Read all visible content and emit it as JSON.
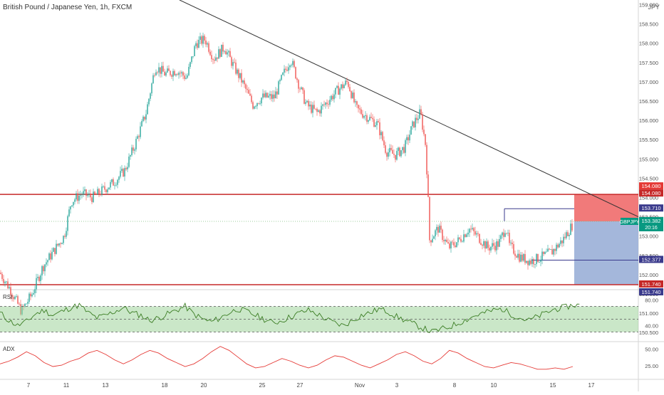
{
  "header": {
    "title": "British Pound / Japanese Yen, 1h, FXCM",
    "corner": "JPY"
  },
  "colors": {
    "up": "#26a69a",
    "down": "#ef5350",
    "level_line": "#c62828",
    "trend_line": "#333333",
    "stop_zone": "#ef6b6b",
    "target_zone": "#9fb3d9",
    "rsi_line": "#3b7d23",
    "rsi_band": "#9fd39a",
    "adx_line": "#e53935",
    "current_price": "#089981"
  },
  "chart_data": [
    {
      "type": "candlestick",
      "pane": "price",
      "y_ticks": [
        "159.000",
        "158.500",
        "158.000",
        "157.500",
        "157.000",
        "156.500",
        "156.000",
        "155.500",
        "155.000",
        "154.500",
        "154.000",
        "153.500",
        "153.000",
        "152.500",
        "152.000",
        "151.500",
        "151.000",
        "150.500"
      ],
      "ylim": [
        150.3,
        159.0
      ],
      "x_ticks": [
        "7",
        "11",
        "13",
        "18",
        "20",
        "25",
        "27",
        "Nov",
        "3",
        "8",
        "10",
        "15",
        "17"
      ],
      "close_path": [
        [
          0,
          152.05
        ],
        [
          15,
          151.6
        ],
        [
          30,
          151.05
        ],
        [
          45,
          151.5
        ],
        [
          60,
          152.2
        ],
        [
          75,
          152.6
        ],
        [
          90,
          153.0
        ],
        [
          100,
          153.9
        ],
        [
          115,
          154.1
        ],
        [
          130,
          154.0
        ],
        [
          145,
          154.2
        ],
        [
          160,
          154.4
        ],
        [
          175,
          154.7
        ],
        [
          190,
          155.4
        ],
        [
          205,
          156.2
        ],
        [
          218,
          157.4
        ],
        [
          232,
          157.2
        ],
        [
          248,
          157.3
        ],
        [
          262,
          157.1
        ],
        [
          275,
          158.0
        ],
        [
          288,
          158.1
        ],
        [
          300,
          157.6
        ],
        [
          315,
          157.9
        ],
        [
          328,
          157.4
        ],
        [
          340,
          157.0
        ],
        [
          355,
          156.4
        ],
        [
          368,
          156.6
        ],
        [
          385,
          156.6
        ],
        [
          398,
          157.2
        ],
        [
          408,
          157.6
        ],
        [
          420,
          156.9
        ],
        [
          430,
          156.4
        ],
        [
          445,
          156.2
        ],
        [
          460,
          156.5
        ],
        [
          475,
          156.8
        ],
        [
          488,
          157.0
        ],
        [
          500,
          156.3
        ],
        [
          515,
          156.1
        ],
        [
          530,
          155.9
        ],
        [
          542,
          155.2
        ],
        [
          555,
          155.1
        ],
        [
          568,
          155.3
        ],
        [
          580,
          155.9
        ],
        [
          590,
          156.2
        ],
        [
          597,
          155.4
        ],
        [
          600,
          154.4
        ],
        [
          603,
          152.9
        ],
        [
          615,
          153.2
        ],
        [
          630,
          152.7
        ],
        [
          645,
          152.9
        ],
        [
          658,
          153.2
        ],
        [
          670,
          153.0
        ],
        [
          685,
          152.7
        ],
        [
          700,
          152.8
        ],
        [
          710,
          153.25
        ],
        [
          715,
          152.75
        ],
        [
          730,
          152.45
        ],
        [
          745,
          152.35
        ],
        [
          760,
          152.45
        ],
        [
          775,
          152.6
        ],
        [
          790,
          152.9
        ],
        [
          803,
          153.28
        ]
      ]
    },
    {
      "type": "line",
      "pane": "rsi",
      "title": "RSI",
      "y_ticks": [
        "80.00",
        "40.00"
      ],
      "ylim": [
        20,
        100
      ],
      "levels": [
        70,
        50,
        30
      ],
      "values": [
        60,
        48,
        40,
        46,
        58,
        64,
        56,
        62,
        68,
        72,
        60,
        52,
        56,
        62,
        68,
        60,
        56,
        48,
        52,
        58,
        64,
        70,
        58,
        50,
        46,
        52,
        60,
        66,
        62,
        56,
        50,
        44,
        48,
        54,
        60,
        64,
        58,
        50,
        44,
        40,
        48,
        56,
        60,
        66,
        62,
        54,
        48,
        42,
        36,
        30,
        34,
        38,
        44,
        50,
        56,
        60,
        64,
        66,
        58,
        52,
        48,
        54,
        60,
        66,
        68,
        72
      ]
    },
    {
      "type": "line",
      "pane": "adx",
      "title": "ADX",
      "y_ticks": [
        "50.00",
        "25.00"
      ],
      "ylim": [
        5,
        60
      ],
      "values": [
        28,
        32,
        38,
        46,
        40,
        30,
        24,
        26,
        32,
        36,
        44,
        48,
        42,
        34,
        28,
        34,
        42,
        48,
        44,
        36,
        30,
        24,
        28,
        36,
        46,
        54,
        48,
        38,
        28,
        22,
        24,
        30,
        36,
        32,
        26,
        22,
        26,
        34,
        40,
        38,
        32,
        26,
        22,
        28,
        34,
        42,
        46,
        40,
        32,
        28,
        36,
        48,
        44,
        36,
        30,
        24,
        22,
        26,
        30,
        28,
        24,
        20,
        20,
        22,
        20,
        24
      ]
    }
  ],
  "annotations": {
    "upper_level": "154.080",
    "lower_level": "151.740",
    "stop_level": "153.710",
    "prev_high": "153.386",
    "target_level": "152.377",
    "entry": "153.382"
  },
  "price_labels": [
    {
      "text": "154.080",
      "bg": "#e53935"
    },
    {
      "text": "154.080",
      "bg": "#c62828"
    },
    {
      "text": "153.710",
      "bg": "#3a3a8c"
    },
    {
      "text": "153.386",
      "bg": "#555555"
    },
    {
      "text": "153.382",
      "bg": "#089981"
    },
    {
      "text": "20:16",
      "bg": "#089981"
    },
    {
      "text": "152.377",
      "bg": "#3a3a8c"
    },
    {
      "text": "151.740",
      "bg": "#c62828"
    },
    {
      "text": "151.740",
      "bg": "#3a3a8c"
    }
  ],
  "symbol_tag": "GBPJPY"
}
